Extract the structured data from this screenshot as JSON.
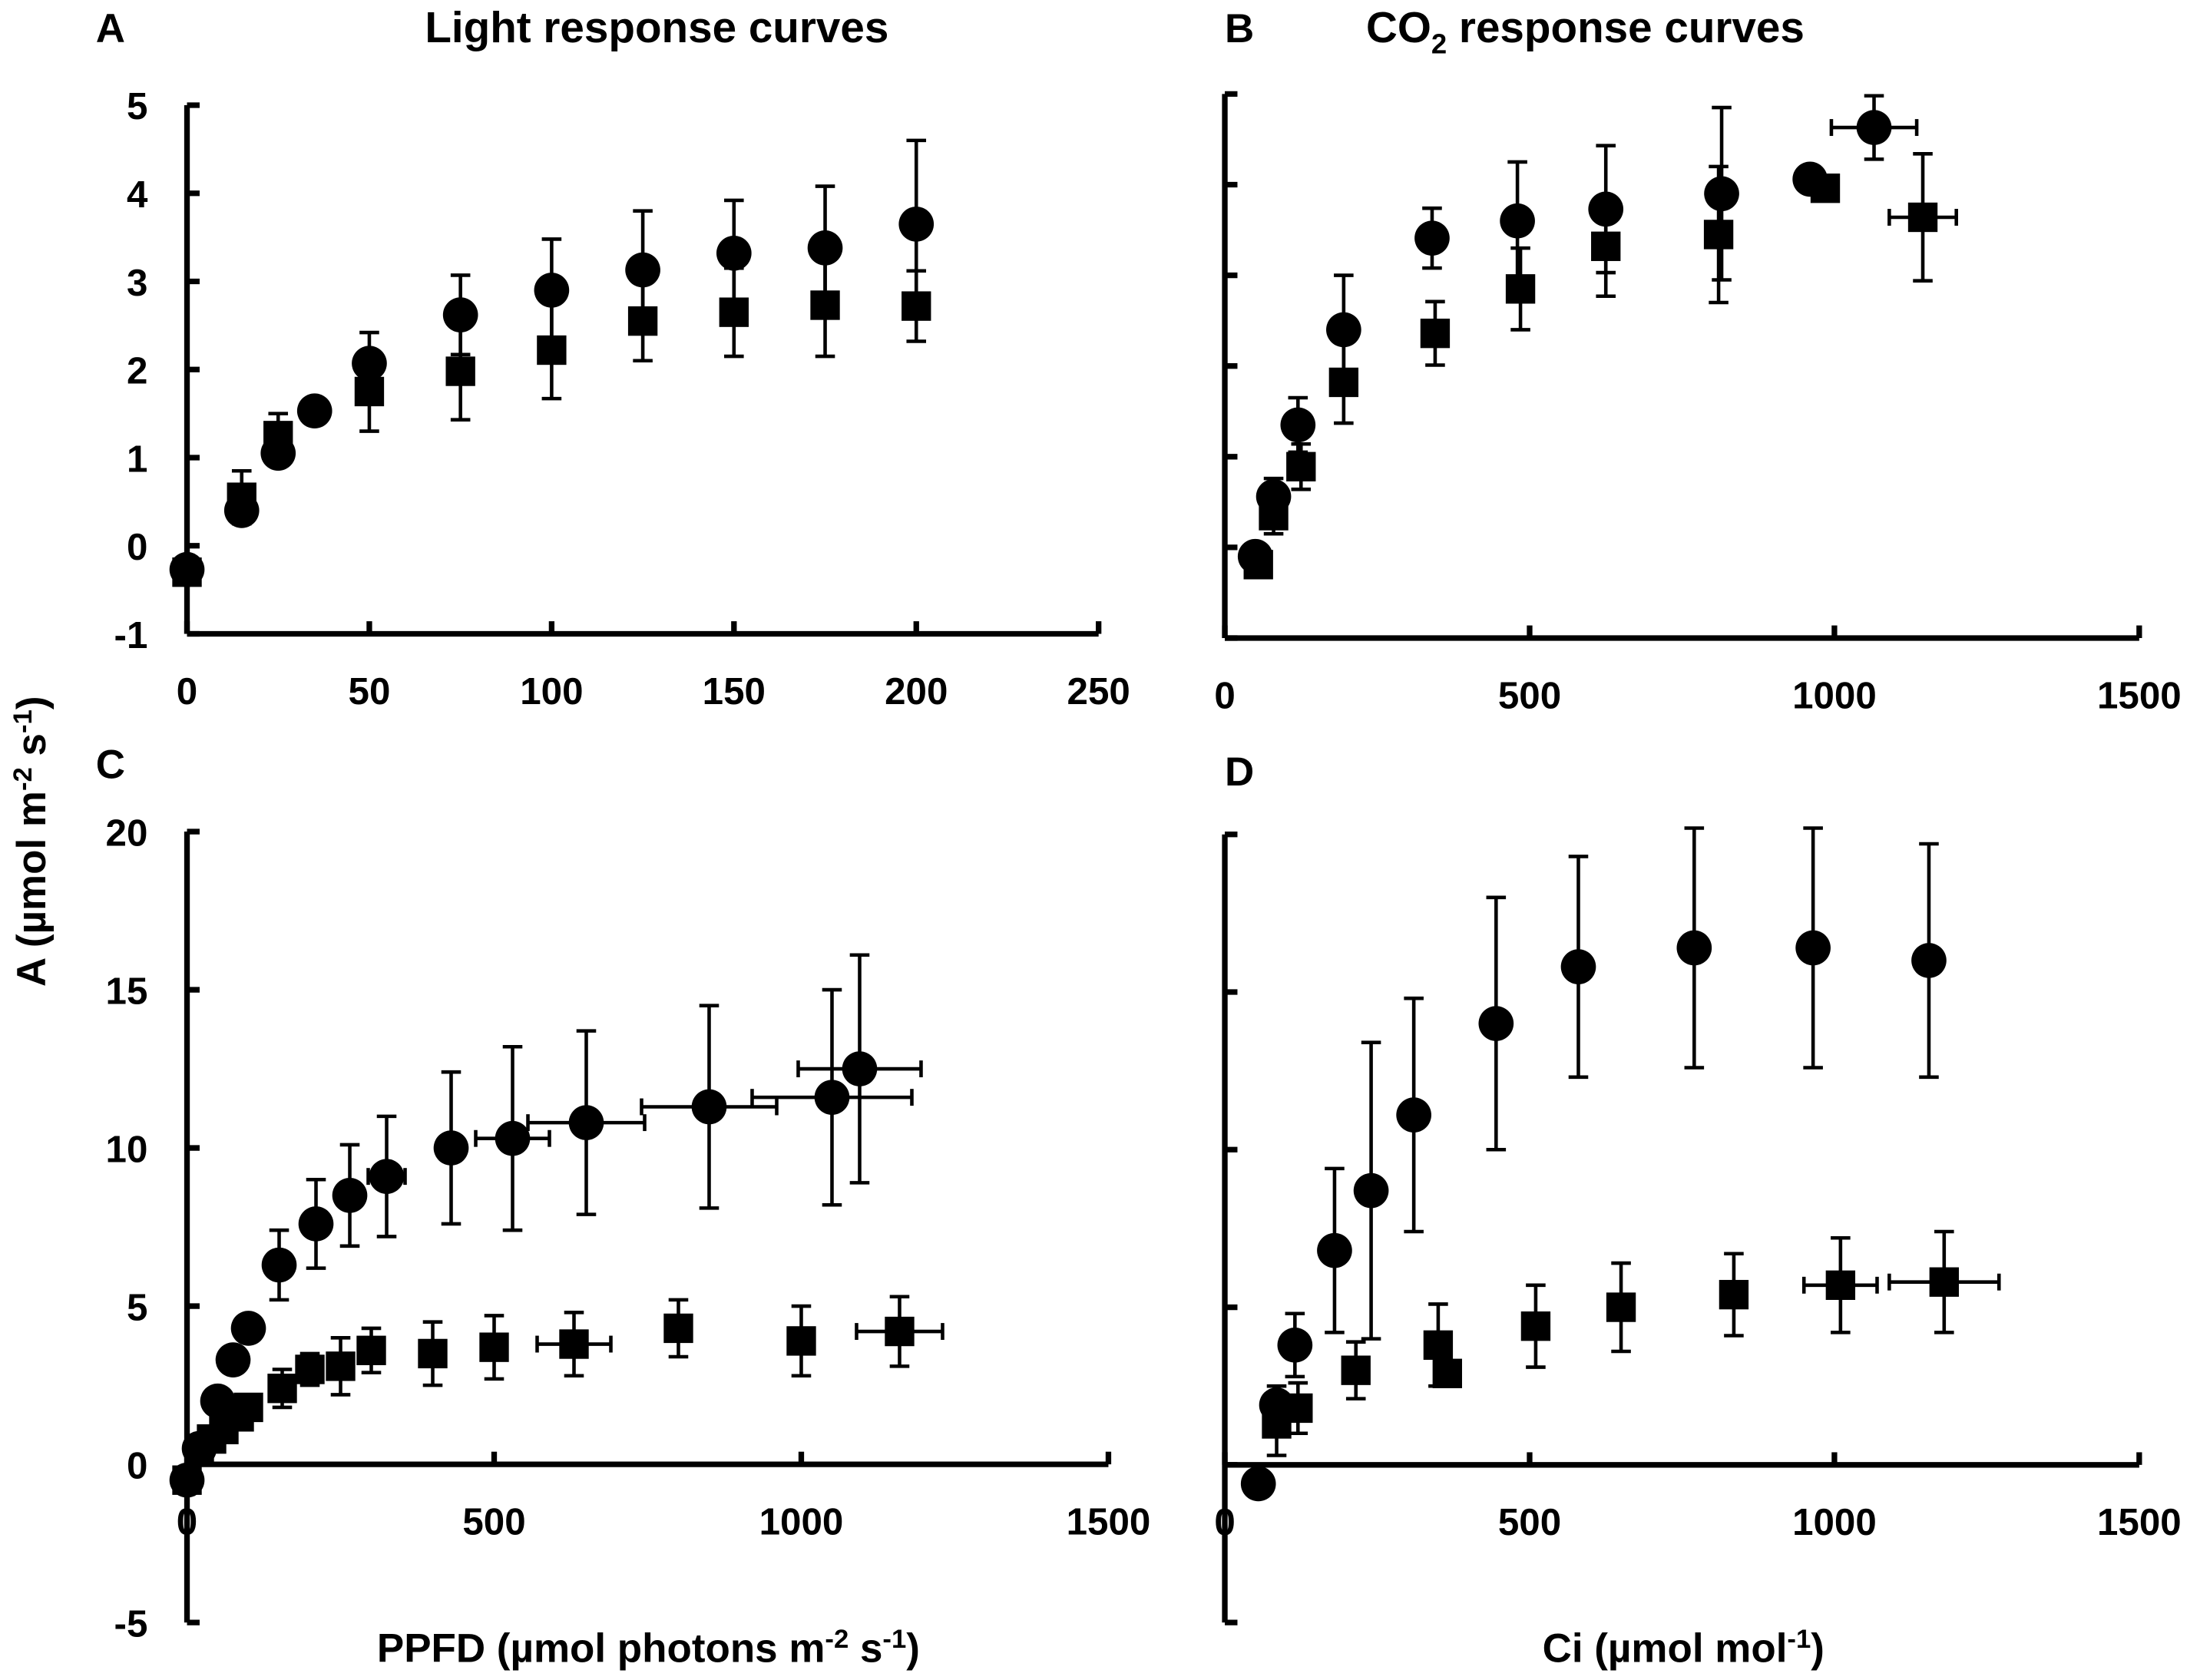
{
  "chart_data": [
    {
      "type": "scatter",
      "panel": "A",
      "title": "Light response curves",
      "xlim": [
        0,
        250
      ],
      "ylim": [
        -1,
        5
      ],
      "xticks": [
        0,
        50,
        100,
        150,
        200,
        250
      ],
      "yticks": [
        -1,
        0,
        1,
        2,
        3,
        4,
        5
      ],
      "show_ytick_labels": true,
      "series": [
        {
          "name": "circles",
          "marker": "circle",
          "points": [
            {
              "x": 0,
              "y": -0.27,
              "ey": 0
            },
            {
              "x": 15,
              "y": 0.4,
              "ey": 0
            },
            {
              "x": 25,
              "y": 1.05,
              "ey": 0
            },
            {
              "x": 35,
              "y": 1.53,
              "ey": 0
            },
            {
              "x": 50,
              "y": 2.07,
              "ey": 0.35
            },
            {
              "x": 75,
              "y": 2.62,
              "ey": 0.45
            },
            {
              "x": 100,
              "y": 2.9,
              "ey": 0.58
            },
            {
              "x": 125,
              "y": 3.13,
              "ey": 0.67
            },
            {
              "x": 150,
              "y": 3.32,
              "ey": 0.6
            },
            {
              "x": 175,
              "y": 3.38,
              "ey": 0.7
            },
            {
              "x": 200,
              "y": 3.65,
              "ey": 0.95
            }
          ]
        },
        {
          "name": "squares",
          "marker": "square",
          "points": [
            {
              "x": 0,
              "y": -0.3,
              "ey": 0
            },
            {
              "x": 15,
              "y": 0.55,
              "ey": 0.3
            },
            {
              "x": 25,
              "y": 1.25,
              "ey": 0.25
            },
            {
              "x": 50,
              "y": 1.75,
              "ey": 0.45
            },
            {
              "x": 75,
              "y": 1.98,
              "ey": 0.55
            },
            {
              "x": 100,
              "y": 2.22,
              "ey": 0.55
            },
            {
              "x": 125,
              "y": 2.55,
              "ey": 0.45
            },
            {
              "x": 150,
              "y": 2.65,
              "ey": 0.5
            },
            {
              "x": 175,
              "y": 2.73,
              "ey": 0.58
            },
            {
              "x": 200,
              "y": 2.72,
              "ey": 0.4
            }
          ]
        }
      ]
    },
    {
      "type": "scatter",
      "panel": "B",
      "title_main": "CO",
      "title_sub": "2",
      "title_rest": " response curves",
      "xlim": [
        0,
        1500
      ],
      "ylim": [
        -1,
        5
      ],
      "xticks": [
        0,
        500,
        1000,
        1500
      ],
      "yticks": [
        -1,
        0,
        1,
        2,
        3,
        4,
        5
      ],
      "show_ytick_labels": false,
      "series": [
        {
          "name": "circles",
          "marker": "circle",
          "points": [
            {
              "x": 50,
              "y": -0.1,
              "ey": 0
            },
            {
              "x": 80,
              "y": 0.56,
              "ey": 0.2
            },
            {
              "x": 120,
              "y": 1.35,
              "ey": 0.3
            },
            {
              "x": 195,
              "y": 2.4,
              "ey": 0.6
            },
            {
              "x": 340,
              "y": 3.41,
              "ey": 0.33
            },
            {
              "x": 480,
              "y": 3.6,
              "ey": 0.65
            },
            {
              "x": 625,
              "y": 3.73,
              "ey": 0.7
            },
            {
              "x": 815,
              "y": 3.9,
              "ey": 0.95
            },
            {
              "x": 960,
              "y": 4.06,
              "ey": 0
            },
            {
              "x": 1065,
              "y": 4.63,
              "ey": 0.35,
              "ex": 70
            }
          ]
        },
        {
          "name": "squares",
          "marker": "square",
          "points": [
            {
              "x": 55,
              "y": -0.19,
              "ey": 0
            },
            {
              "x": 80,
              "y": 0.35,
              "ey": 0.2
            },
            {
              "x": 125,
              "y": 0.89,
              "ey": 0.25
            },
            {
              "x": 195,
              "y": 1.82,
              "ey": 0.45
            },
            {
              "x": 345,
              "y": 2.36,
              "ey": 0.35
            },
            {
              "x": 485,
              "y": 2.85,
              "ey": 0.45
            },
            {
              "x": 625,
              "y": 3.32,
              "ey": 0.55
            },
            {
              "x": 810,
              "y": 3.45,
              "ey": 0.75
            },
            {
              "x": 985,
              "y": 3.96,
              "ey": 0
            },
            {
              "x": 1145,
              "y": 3.64,
              "ey": 0.7,
              "ex": 55
            }
          ]
        }
      ]
    },
    {
      "type": "scatter",
      "panel": "C",
      "xlim": [
        0,
        1500
      ],
      "ylim": [
        -5,
        20
      ],
      "xticks": [
        0,
        500,
        1000,
        1500
      ],
      "yticks": [
        -5,
        0,
        5,
        10,
        15,
        20
      ],
      "show_ytick_labels": true,
      "series": [
        {
          "name": "circles",
          "marker": "circle",
          "points": [
            {
              "x": 0,
              "y": -0.5,
              "ey": 0
            },
            {
              "x": 20,
              "y": 0.5,
              "ey": 0
            },
            {
              "x": 50,
              "y": 2.0,
              "ey": 0
            },
            {
              "x": 75,
              "y": 3.3,
              "ey": 0.3
            },
            {
              "x": 100,
              "y": 4.3,
              "ey": 0.4
            },
            {
              "x": 150,
              "y": 6.3,
              "ey": 1.1
            },
            {
              "x": 210,
              "y": 7.6,
              "ey": 1.4
            },
            {
              "x": 265,
              "y": 8.5,
              "ey": 1.6
            },
            {
              "x": 325,
              "y": 9.1,
              "ey": 1.9,
              "ex": 30
            },
            {
              "x": 430,
              "y": 10.0,
              "ey": 2.4
            },
            {
              "x": 530,
              "y": 10.3,
              "ey": 2.9,
              "ex": 60
            },
            {
              "x": 650,
              "y": 10.8,
              "ey": 2.9,
              "ex": 95
            },
            {
              "x": 850,
              "y": 11.3,
              "ey": 3.2,
              "ex": 110
            },
            {
              "x": 1050,
              "y": 11.6,
              "ey": 3.4,
              "ex": 130
            },
            {
              "x": 1095,
              "y": 12.5,
              "ey": 3.6,
              "ex": 100
            }
          ]
        },
        {
          "name": "squares",
          "marker": "square",
          "points": [
            {
              "x": 0,
              "y": -0.5,
              "ey": 0
            },
            {
              "x": 20,
              "y": 0.5,
              "ey": 0
            },
            {
              "x": 40,
              "y": 0.8,
              "ey": 0
            },
            {
              "x": 60,
              "y": 1.1,
              "ey": 0
            },
            {
              "x": 85,
              "y": 1.5,
              "ey": 0
            },
            {
              "x": 100,
              "y": 1.8,
              "ey": 0
            },
            {
              "x": 155,
              "y": 2.4,
              "ey": 0.6
            },
            {
              "x": 200,
              "y": 3.0,
              "ey": 0.5
            },
            {
              "x": 250,
              "y": 3.1,
              "ey": 0.9
            },
            {
              "x": 300,
              "y": 3.6,
              "ey": 0.7
            },
            {
              "x": 400,
              "y": 3.5,
              "ey": 1.0
            },
            {
              "x": 500,
              "y": 3.7,
              "ey": 1.0
            },
            {
              "x": 630,
              "y": 3.8,
              "ey": 1.0,
              "ex": 60
            },
            {
              "x": 800,
              "y": 4.3,
              "ey": 0.9
            },
            {
              "x": 1000,
              "y": 3.9,
              "ey": 1.1
            },
            {
              "x": 1160,
              "y": 4.2,
              "ey": 1.1,
              "ex": 70
            }
          ]
        }
      ]
    },
    {
      "type": "scatter",
      "panel": "D",
      "xlim": [
        0,
        1500
      ],
      "ylim": [
        -5,
        20
      ],
      "xticks": [
        0,
        500,
        1000,
        1500
      ],
      "yticks": [
        -5,
        0,
        5,
        10,
        15,
        20
      ],
      "show_ytick_labels": false,
      "series": [
        {
          "name": "circles",
          "marker": "circle",
          "points": [
            {
              "x": 55,
              "y": -0.6,
              "ey": 0
            },
            {
              "x": 85,
              "y": 1.9,
              "ey": 0.6
            },
            {
              "x": 115,
              "y": 3.8,
              "ey": 1.0
            },
            {
              "x": 180,
              "y": 6.8,
              "ey": 2.6
            },
            {
              "x": 240,
              "y": 8.7,
              "ey": 4.7
            },
            {
              "x": 310,
              "y": 11.1,
              "ey": 3.7
            },
            {
              "x": 445,
              "y": 14.0,
              "ey": 4.0
            },
            {
              "x": 580,
              "y": 15.8,
              "ey": 3.5
            },
            {
              "x": 770,
              "y": 16.4,
              "ey": 3.8
            },
            {
              "x": 965,
              "y": 16.4,
              "ey": 3.8
            },
            {
              "x": 1155,
              "y": 16.0,
              "ey": 3.7
            }
          ]
        },
        {
          "name": "squares",
          "marker": "square",
          "points": [
            {
              "x": 85,
              "y": 1.3,
              "ey": 1.0
            },
            {
              "x": 120,
              "y": 1.8,
              "ey": 0.8
            },
            {
              "x": 215,
              "y": 3.0,
              "ey": 0.9
            },
            {
              "x": 350,
              "y": 3.8,
              "ey": 1.3
            },
            {
              "x": 365,
              "y": 2.9,
              "ey": 0
            },
            {
              "x": 510,
              "y": 4.4,
              "ey": 1.3
            },
            {
              "x": 650,
              "y": 5.0,
              "ey": 1.4
            },
            {
              "x": 835,
              "y": 5.4,
              "ey": 1.3
            },
            {
              "x": 1010,
              "y": 5.7,
              "ey": 1.5,
              "ex": 60
            },
            {
              "x": 1180,
              "y": 5.8,
              "ey": 1.6,
              "ex": 90
            }
          ]
        }
      ]
    }
  ],
  "labels": {
    "panel_a": "A",
    "panel_b": "B",
    "panel_c": "C",
    "panel_d": "D",
    "title_a": "Light response curves",
    "title_b_main": "CO",
    "title_b_sub": "2",
    "title_b_rest": " response curves",
    "ylabel": {
      "main": "A (µmol m",
      "sup1": "-2",
      "mid": "  s",
      "sup2": "-1",
      "end": ")"
    },
    "xlabel_left": {
      "main": "PPFD (µmol photons m",
      "sup1": "-2",
      "mid": " s",
      "sup2": "-1",
      "end": ")"
    },
    "xlabel_right": {
      "main": "Ci (µmol mol",
      "sup1": "-1",
      "end": ")"
    }
  }
}
